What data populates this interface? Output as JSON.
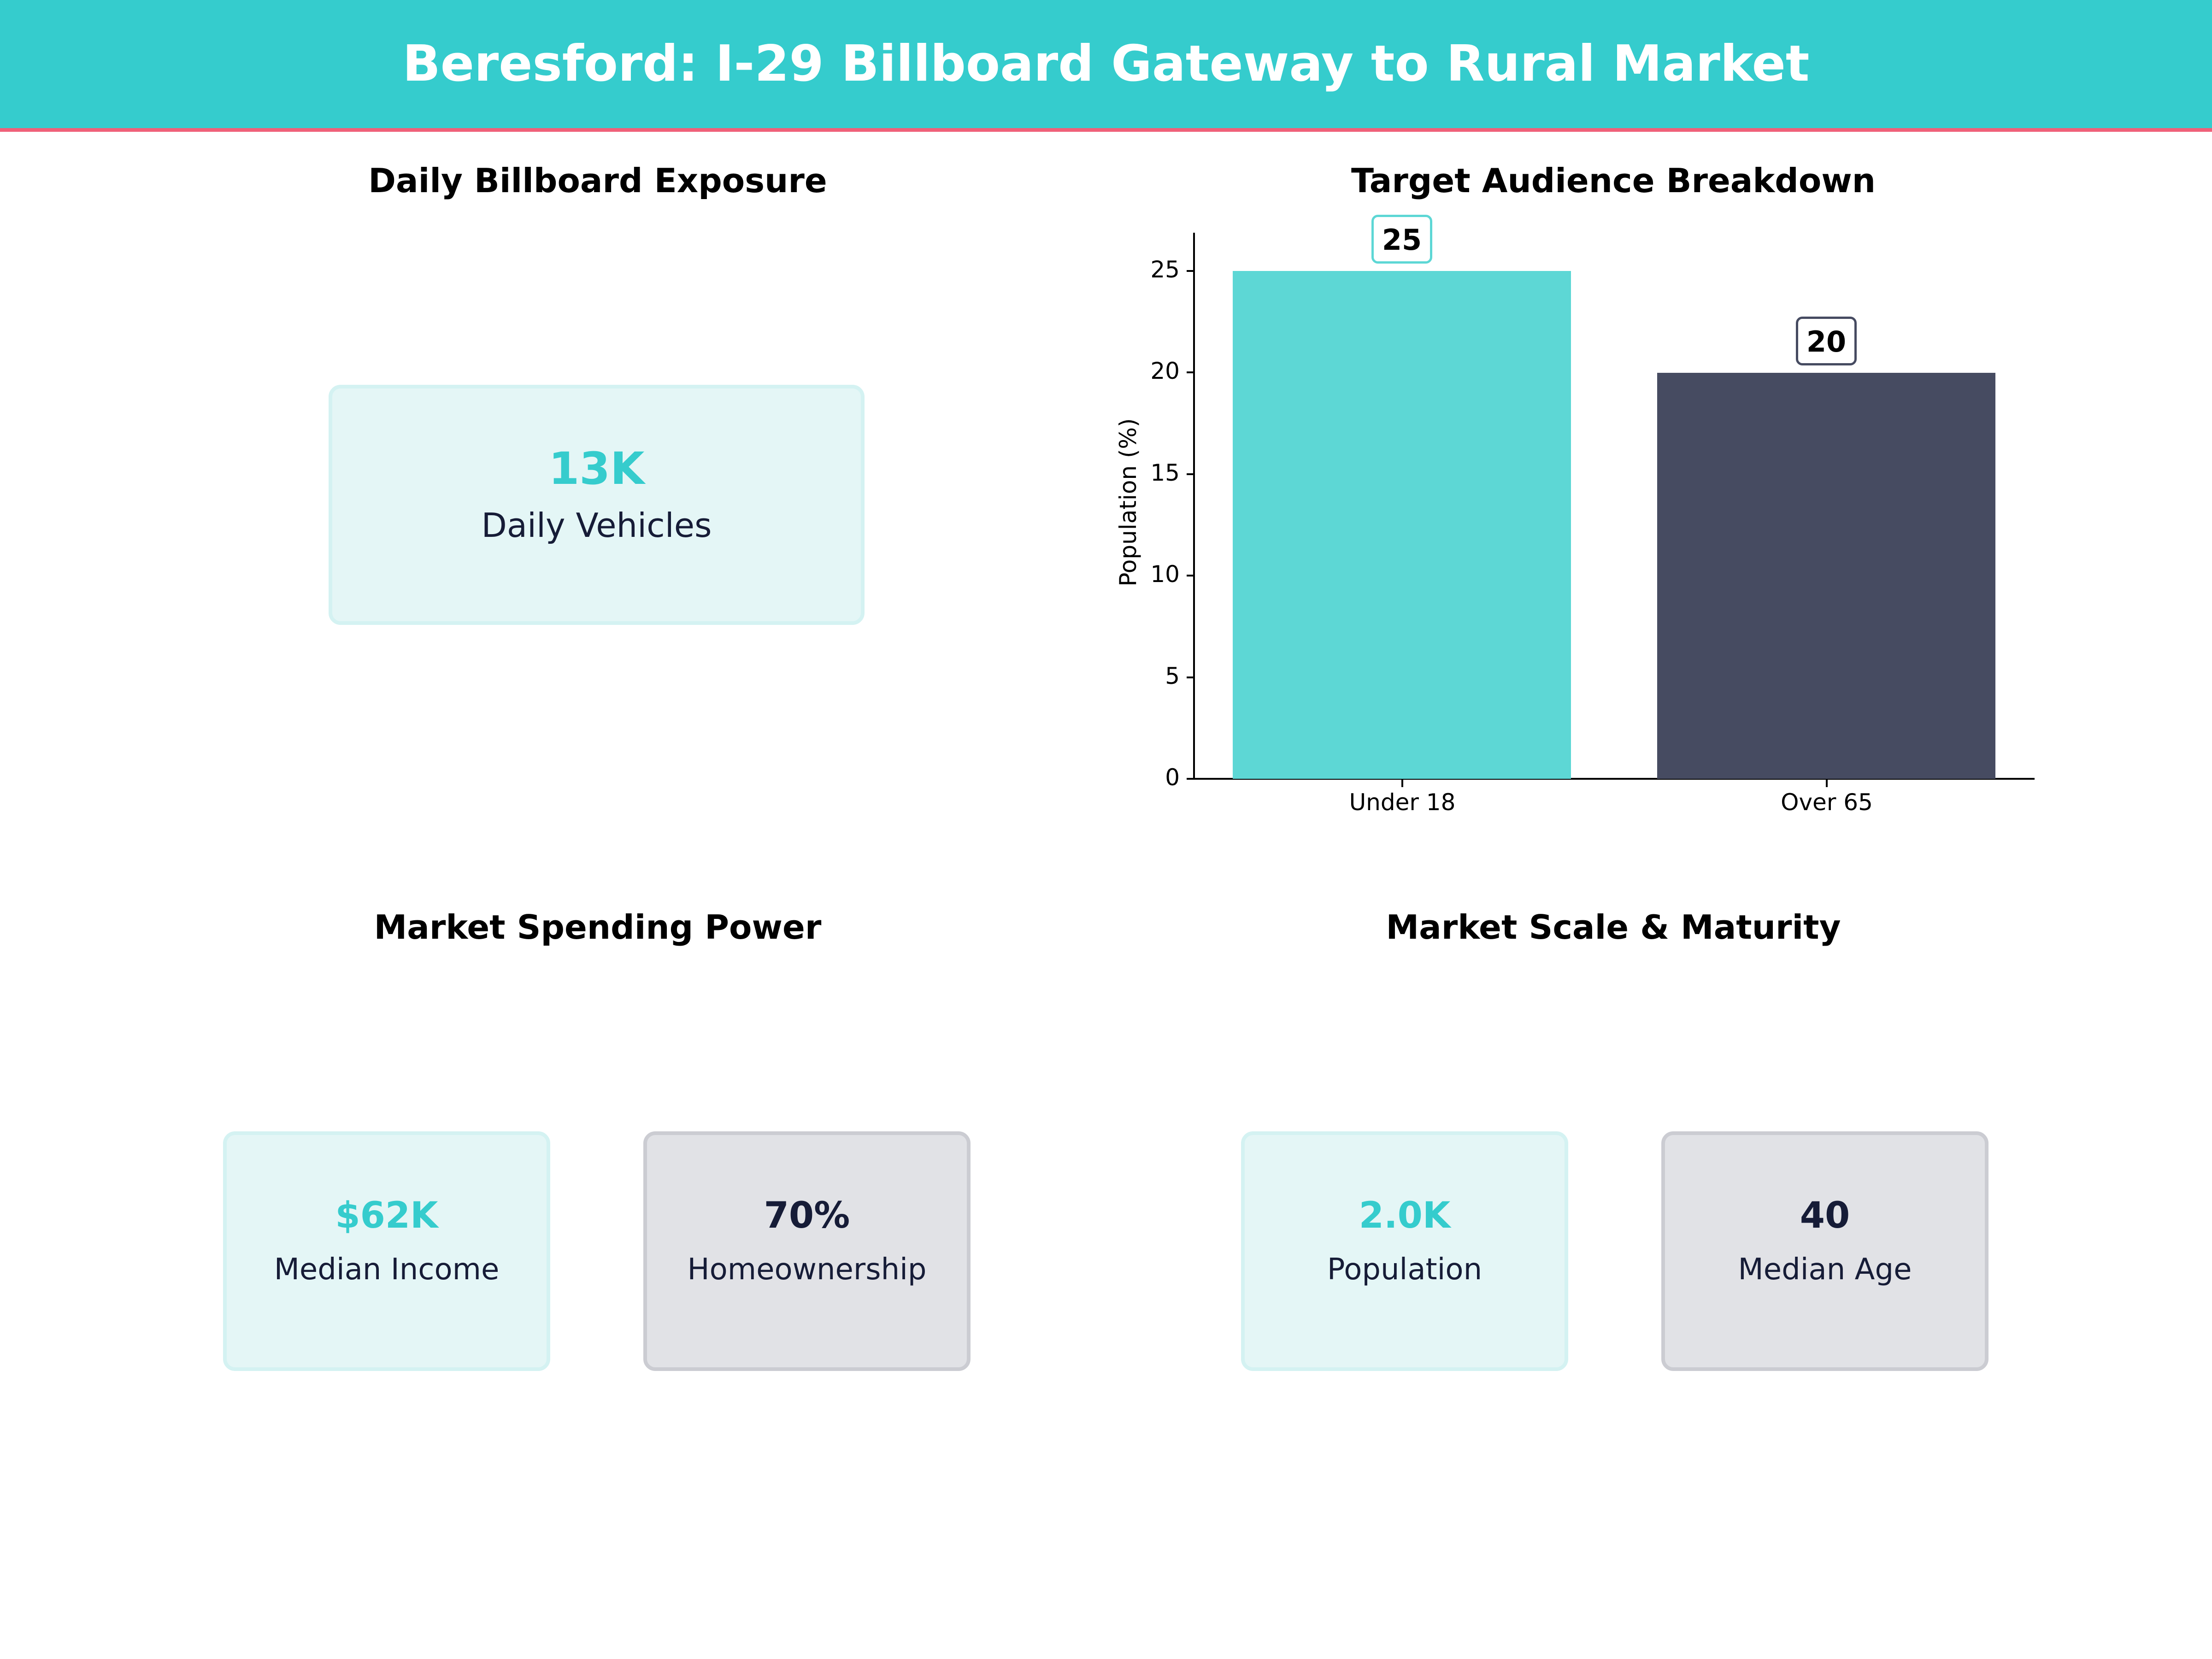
{
  "header": {
    "title": "Beresford: I-29 Billboard Gateway to Rural Market",
    "background": "#35cccd",
    "accent_line": "#ef6079"
  },
  "panels": {
    "exposure": {
      "title": "Daily Billboard Exposure",
      "card": {
        "value": "13K",
        "label": "Daily Vehicles"
      }
    },
    "audience": {
      "title": "Target Audience Breakdown"
    },
    "spending": {
      "title": "Market Spending Power",
      "cards": [
        {
          "value": "$62K",
          "label": "Median Income"
        },
        {
          "value": "70%",
          "label": "Homeownership"
        }
      ]
    },
    "scale": {
      "title": "Market Scale & Maturity",
      "cards": [
        {
          "value": "2.0K",
          "label": "Population"
        },
        {
          "value": "40",
          "label": "Median Age"
        }
      ]
    }
  },
  "colors": {
    "teal": "#35cccd",
    "bar_teal": "#5dd7d5",
    "bar_navy": "#464b61",
    "navy_text": "#161c37"
  },
  "chart_data": {
    "type": "bar",
    "title": "Target Audience Breakdown",
    "categories": [
      "Under 18",
      "Over 65"
    ],
    "values": [
      25,
      20
    ],
    "value_labels": [
      "25",
      "20"
    ],
    "xlabel": "",
    "ylabel": "Population (%)",
    "ylim": [
      0,
      27
    ],
    "yticks": [
      "0",
      "5",
      "10",
      "15",
      "20",
      "25"
    ],
    "grid": false,
    "legend": null
  }
}
